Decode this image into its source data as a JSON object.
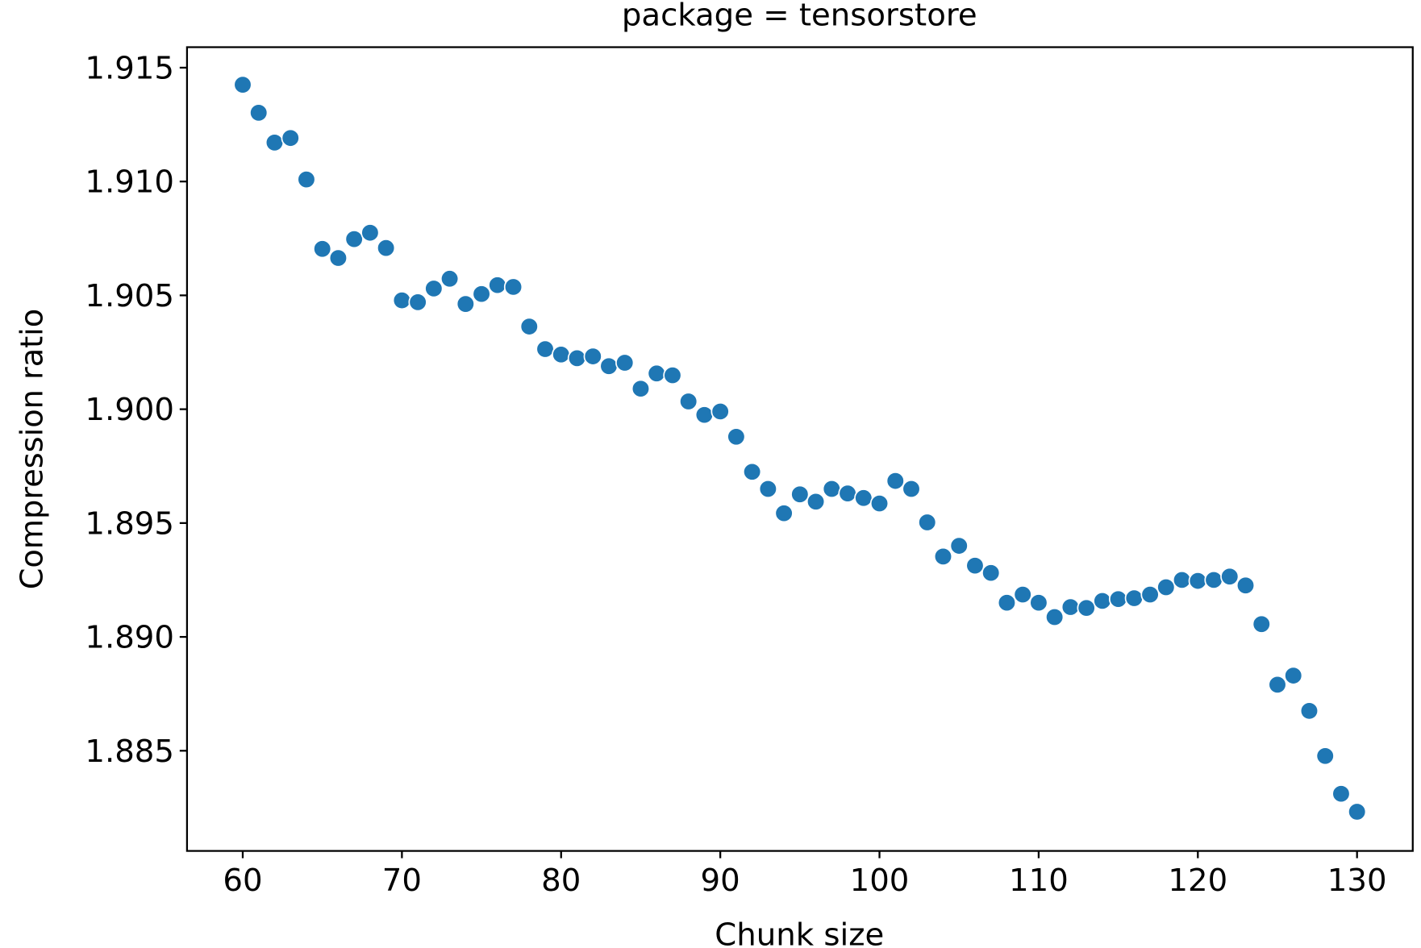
{
  "chart_data": {
    "type": "scatter",
    "title": "package = tensorstore",
    "xlabel": "Chunk size",
    "ylabel": "Compression ratio",
    "xlim": [
      56.5,
      133.5
    ],
    "ylim": [
      1.8806,
      1.9159
    ],
    "xticks": [
      60,
      70,
      80,
      90,
      100,
      110,
      120,
      130
    ],
    "yticks": [
      1.885,
      1.89,
      1.895,
      1.9,
      1.905,
      1.91,
      1.915
    ],
    "ytick_labels": [
      "1.885",
      "1.890",
      "1.895",
      "1.900",
      "1.905",
      "1.910",
      "1.915"
    ],
    "grid": false,
    "marker_color": "#1f77b4",
    "x": [
      60,
      61,
      62,
      63,
      64,
      65,
      66,
      67,
      68,
      69,
      70,
      71,
      72,
      73,
      74,
      75,
      76,
      77,
      78,
      79,
      80,
      81,
      82,
      83,
      84,
      85,
      86,
      87,
      88,
      89,
      90,
      91,
      92,
      93,
      94,
      95,
      96,
      97,
      98,
      99,
      100,
      101,
      102,
      103,
      104,
      105,
      106,
      107,
      108,
      109,
      110,
      111,
      112,
      113,
      114,
      115,
      116,
      117,
      118,
      119,
      120,
      121,
      122,
      123,
      124,
      125,
      126,
      127,
      128,
      129,
      130
    ],
    "y": [
      1.91425,
      1.91302,
      1.91171,
      1.91191,
      1.91009,
      1.90704,
      1.90664,
      1.90747,
      1.90775,
      1.90708,
      1.90478,
      1.9047,
      1.9053,
      1.90573,
      1.90462,
      1.90506,
      1.90545,
      1.90537,
      1.90363,
      1.90264,
      1.9024,
      1.90224,
      1.90232,
      1.90189,
      1.90204,
      1.9009,
      1.90157,
      1.90149,
      1.90034,
      1.89975,
      1.8999,
      1.89879,
      1.89725,
      1.8965,
      1.89543,
      1.89626,
      1.89594,
      1.8965,
      1.8963,
      1.8961,
      1.89586,
      1.89685,
      1.8965,
      1.89503,
      1.89353,
      1.894,
      1.89313,
      1.89281,
      1.8915,
      1.89186,
      1.8915,
      1.89087,
      1.89131,
      1.89127,
      1.89158,
      1.89166,
      1.8917,
      1.89186,
      1.89218,
      1.8925,
      1.89246,
      1.8925,
      1.89265,
      1.89226,
      1.89056,
      1.8879,
      1.8883,
      1.88675,
      1.88477,
      1.88311,
      1.88232
    ]
  }
}
